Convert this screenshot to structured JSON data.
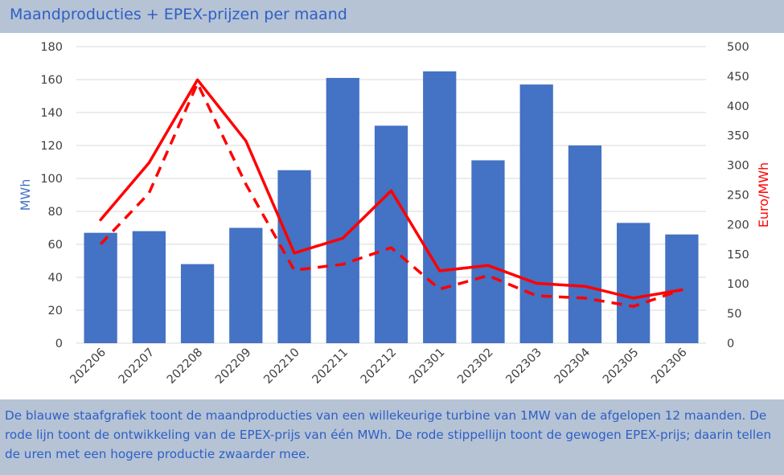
{
  "header": {
    "title": "Maandproducties + EPEX-prijzen per maand"
  },
  "caption": "De blauwe staafgrafiek toont de maandproducties van een willekeurige turbine van 1MW van de afgelopen 12 maanden. De rode lijn toont de ontwikkeling van de EPEX-prijs van één MWh. De rode stippellijn toont de gewogen EPEX-prijs; daarin tellen de uren met een hogere productie zwaarder mee.",
  "chart_data": {
    "type": "bar",
    "title": "Maandproducties + EPEX-prijzen per maand",
    "categories": [
      "202206",
      "202207",
      "202208",
      "202209",
      "202210",
      "202211",
      "202212",
      "202301",
      "202302",
      "202303",
      "202304",
      "202305",
      "202306"
    ],
    "ylabel": "MWh",
    "y2label": "Euro/MWh",
    "ylim": [
      0,
      180
    ],
    "y2lim": [
      0,
      500
    ],
    "yticks": [
      "0",
      "20",
      "40",
      "60",
      "80",
      "100",
      "120",
      "140",
      "160",
      "180"
    ],
    "y2ticks": [
      "0",
      "50",
      "100",
      "150",
      "200",
      "250",
      "300",
      "350",
      "400",
      "450",
      "500"
    ],
    "grid": true,
    "legend": "none",
    "series": [
      {
        "type": "bar",
        "axis": "left",
        "color": "#4472c4",
        "values": [
          67,
          68,
          48,
          70,
          105,
          161,
          132,
          165,
          111,
          157,
          120,
          73,
          66
        ]
      },
      {
        "type": "line",
        "axis": "right",
        "color": "#ff0000",
        "style": "solid",
        "values": [
          208,
          304,
          444,
          341,
          152,
          177,
          257,
          122,
          131,
          101,
          96,
          76,
          90
        ]
      },
      {
        "type": "line",
        "axis": "right",
        "color": "#ff0000",
        "style": "dashed",
        "values": [
          167,
          253,
          438,
          268,
          123,
          133,
          161,
          91,
          114,
          80,
          76,
          62,
          90
        ]
      }
    ],
    "colors": {
      "bar": "#4472c4",
      "line": "#ff0000",
      "left_axis_label": "#4472c4",
      "right_axis_label": "#ff0000",
      "title": "#2f5fc4",
      "band": "#b5c3d5"
    }
  }
}
